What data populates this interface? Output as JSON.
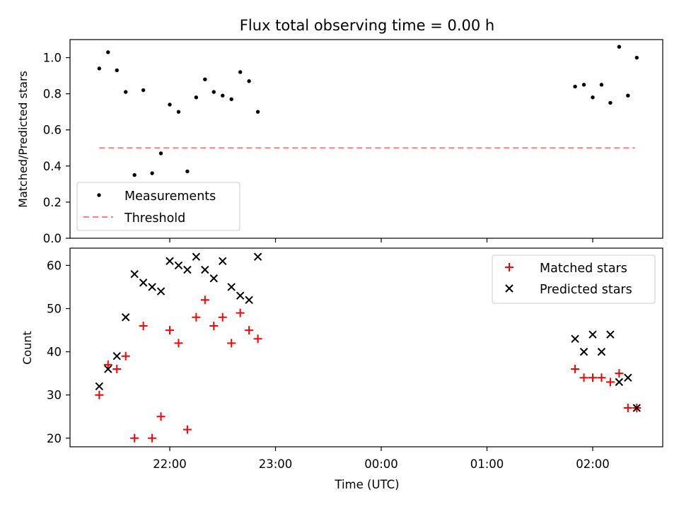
{
  "title": "Flux total observing time = 0.00 h",
  "chart_data": [
    {
      "type": "scatter",
      "ylabel": "Matched/Predicted stars",
      "ylim": [
        0,
        1.1
      ],
      "yticks": [
        "0.0",
        "0.2",
        "0.4",
        "0.6",
        "0.8",
        "1.0"
      ],
      "grid": false,
      "legend_position": "lower-left",
      "legend": [
        "Measurements",
        "Threshold"
      ],
      "threshold": {
        "value": 0.5,
        "x_start": "21:20",
        "x_end": "02:24",
        "color": "#ff7f7f"
      },
      "series": [
        {
          "name": "Measurements",
          "color": "#000000",
          "points": [
            [
              "21:20",
              0.94
            ],
            [
              "21:25",
              1.03
            ],
            [
              "21:30",
              0.93
            ],
            [
              "21:35",
              0.81
            ],
            [
              "21:40",
              0.35
            ],
            [
              "21:45",
              0.82
            ],
            [
              "21:50",
              0.36
            ],
            [
              "21:55",
              0.47
            ],
            [
              "22:00",
              0.74
            ],
            [
              "22:05",
              0.7
            ],
            [
              "22:10",
              0.37
            ],
            [
              "22:15",
              0.78
            ],
            [
              "22:20",
              0.88
            ],
            [
              "22:25",
              0.81
            ],
            [
              "22:30",
              0.79
            ],
            [
              "22:35",
              0.77
            ],
            [
              "22:40",
              0.92
            ],
            [
              "22:45",
              0.87
            ],
            [
              "22:50",
              0.7
            ],
            [
              "01:50",
              0.84
            ],
            [
              "01:55",
              0.85
            ],
            [
              "02:00",
              0.78
            ],
            [
              "02:05",
              0.85
            ],
            [
              "02:10",
              0.75
            ],
            [
              "02:15",
              1.06
            ],
            [
              "02:20",
              0.79
            ],
            [
              "02:25",
              1.0
            ]
          ]
        }
      ]
    },
    {
      "type": "scatter",
      "xlabel": "Time (UTC)",
      "ylabel": "Count",
      "ylim": [
        18,
        64
      ],
      "yticks": [
        "20",
        "30",
        "40",
        "50",
        "60"
      ],
      "xticks": [
        "22:00",
        "23:00",
        "00:00",
        "01:00",
        "02:00"
      ],
      "grid": false,
      "legend_position": "top-right",
      "series": [
        {
          "name": "Matched stars",
          "marker": "plus",
          "color": "#ff0000",
          "points": [
            [
              "21:20",
              30
            ],
            [
              "21:25",
              37
            ],
            [
              "21:30",
              36
            ],
            [
              "21:35",
              39
            ],
            [
              "21:40",
              20
            ],
            [
              "21:45",
              46
            ],
            [
              "21:50",
              20
            ],
            [
              "21:55",
              25
            ],
            [
              "22:00",
              45
            ],
            [
              "22:05",
              42
            ],
            [
              "22:10",
              22
            ],
            [
              "22:15",
              48
            ],
            [
              "22:20",
              52
            ],
            [
              "22:25",
              46
            ],
            [
              "22:30",
              48
            ],
            [
              "22:35",
              42
            ],
            [
              "22:40",
              49
            ],
            [
              "22:45",
              45
            ],
            [
              "22:50",
              43
            ],
            [
              "01:50",
              36
            ],
            [
              "01:55",
              34
            ],
            [
              "02:00",
              34
            ],
            [
              "02:05",
              34
            ],
            [
              "02:10",
              33
            ],
            [
              "02:15",
              35
            ],
            [
              "02:20",
              27
            ],
            [
              "02:25",
              27
            ]
          ]
        },
        {
          "name": "Predicted stars",
          "marker": "x",
          "color": "#000000",
          "points": [
            [
              "21:20",
              32
            ],
            [
              "21:25",
              36
            ],
            [
              "21:30",
              39
            ],
            [
              "21:35",
              48
            ],
            [
              "21:40",
              58
            ],
            [
              "21:45",
              56
            ],
            [
              "21:50",
              55
            ],
            [
              "21:55",
              54
            ],
            [
              "22:00",
              61
            ],
            [
              "22:05",
              60
            ],
            [
              "22:10",
              59
            ],
            [
              "22:15",
              62
            ],
            [
              "22:20",
              59
            ],
            [
              "22:25",
              57
            ],
            [
              "22:30",
              61
            ],
            [
              "22:35",
              55
            ],
            [
              "22:40",
              53
            ],
            [
              "22:45",
              52
            ],
            [
              "22:50",
              62
            ],
            [
              "01:50",
              43
            ],
            [
              "01:55",
              40
            ],
            [
              "02:00",
              44
            ],
            [
              "02:05",
              40
            ],
            [
              "02:10",
              44
            ],
            [
              "02:15",
              33
            ],
            [
              "02:20",
              34
            ],
            [
              "02:25",
              27
            ]
          ]
        }
      ]
    }
  ]
}
